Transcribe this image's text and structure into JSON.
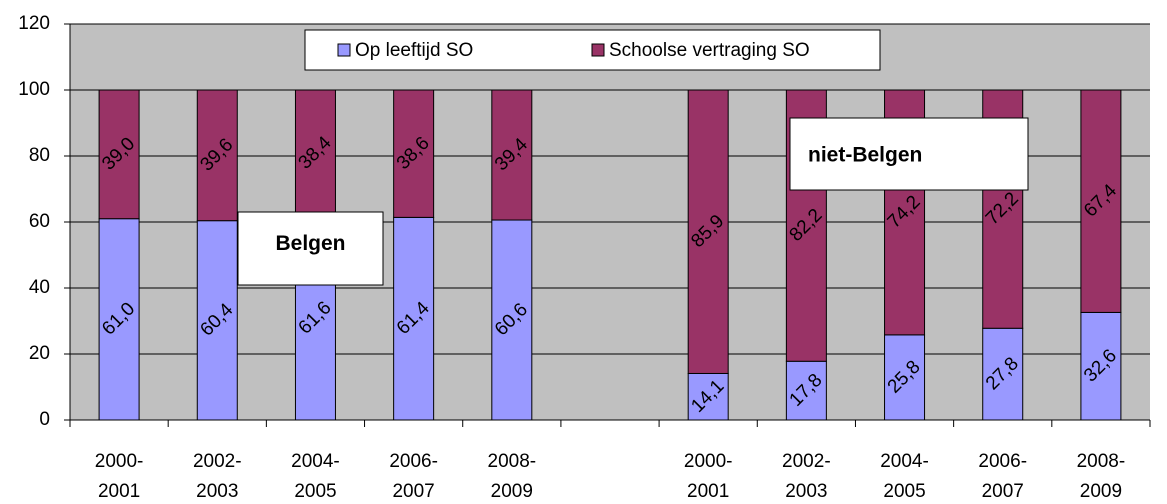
{
  "chart_data": {
    "type": "stacked-bar",
    "categories": [
      "2000-2001",
      "2002-2003",
      "2004-2005",
      "2006-2007",
      "2008-2009",
      null,
      "2000-2001",
      "2002-2003",
      "2004-2005",
      "2006-2007",
      "2008-2009"
    ],
    "series": [
      {
        "name": "Op leeftijd SO",
        "color": "#9999ff",
        "values": [
          61.0,
          60.4,
          61.6,
          61.4,
          60.6,
          null,
          14.1,
          17.8,
          25.8,
          27.8,
          32.6
        ],
        "value_labels": [
          "61,0",
          "60,4",
          "61,6",
          "61,4",
          "60,6",
          null,
          "14,1",
          "17,8",
          "25,8",
          "27,8",
          "32,6"
        ]
      },
      {
        "name": "Schoolse vertraging SO",
        "color": "#993366",
        "values": [
          39.0,
          39.6,
          38.4,
          38.6,
          39.4,
          null,
          85.9,
          82.2,
          74.2,
          72.2,
          67.4
        ],
        "value_labels": [
          "39,0",
          "39,6",
          "38,4",
          "38,6",
          "39,4",
          null,
          "85,9",
          "82,2",
          "74,2",
          "72,2",
          "67,4"
        ]
      }
    ],
    "annotations": [
      "Belgen",
      "niet-Belgen"
    ],
    "ylim": [
      0,
      120
    ],
    "yticks": [
      0,
      20,
      40,
      60,
      80,
      100,
      120
    ],
    "grid": true,
    "legend": "top"
  }
}
